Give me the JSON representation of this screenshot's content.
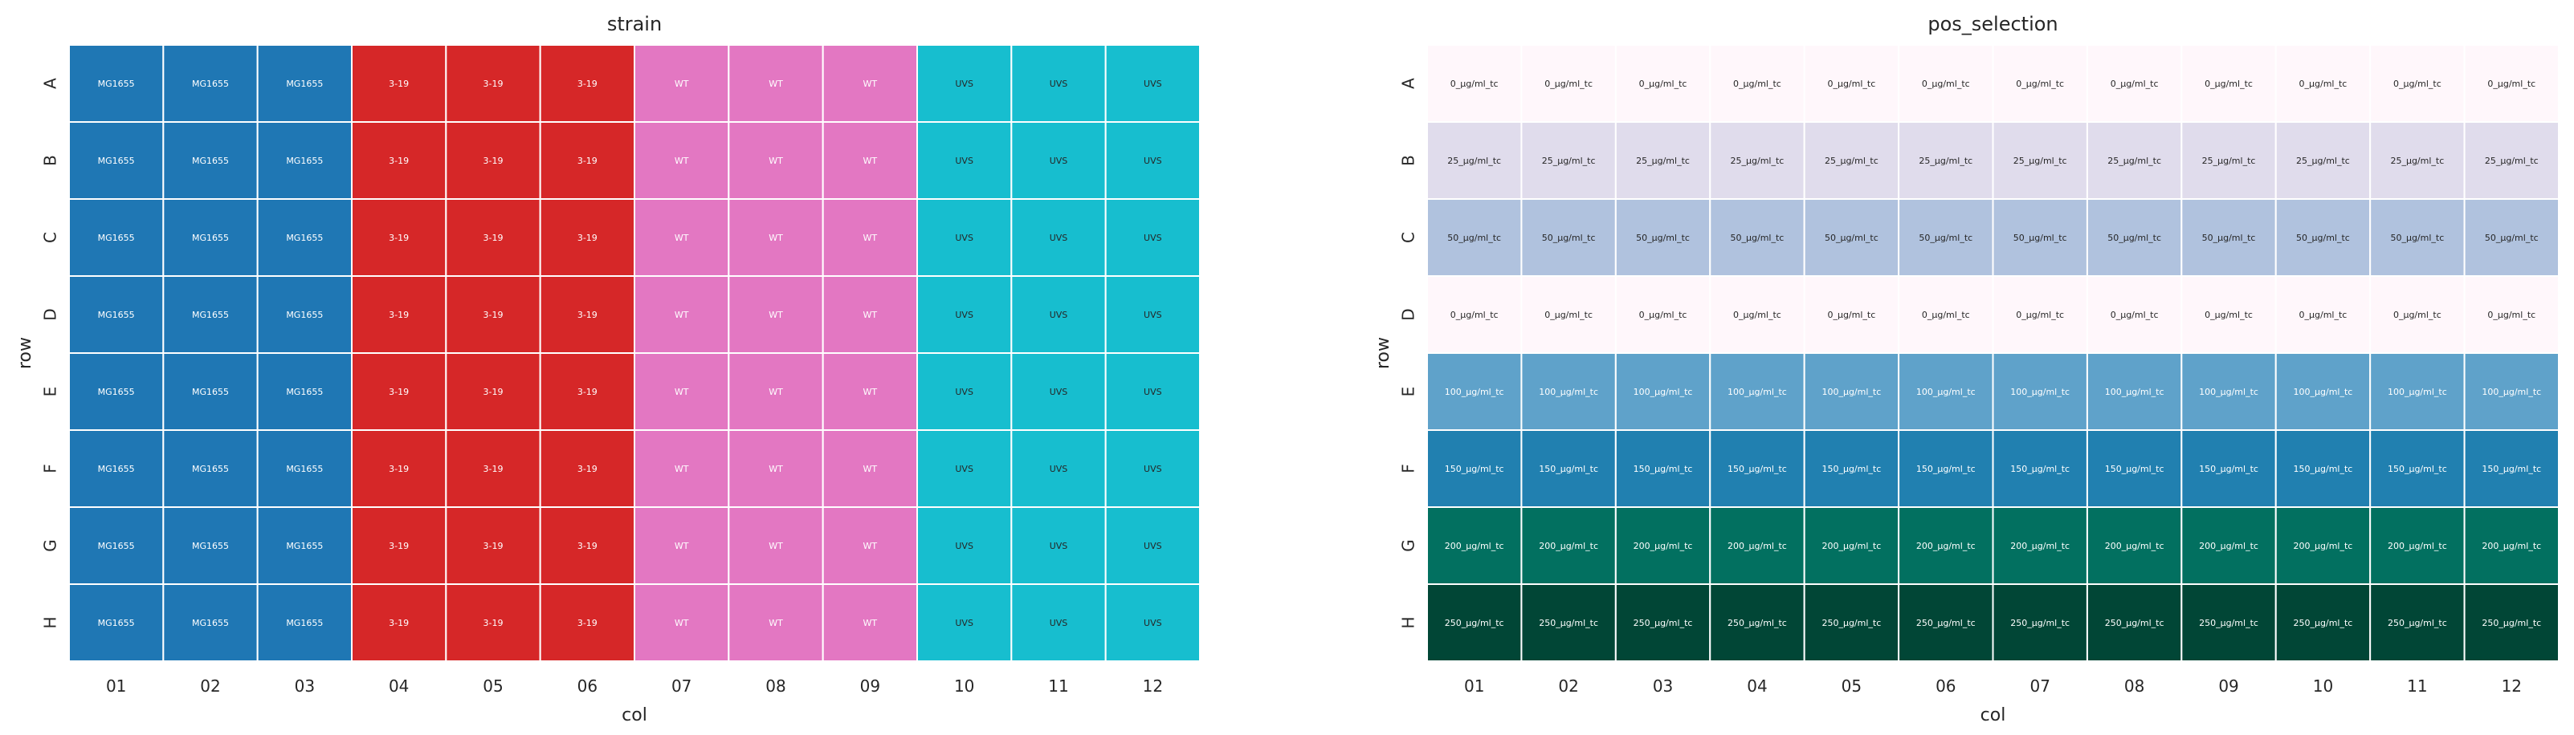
{
  "figure": {
    "palettes": {
      "strain": {
        "MG1655": "#1f77b4",
        "3-19": "#d62728",
        "WT": "#e377c2",
        "UVS": "#17becf"
      },
      "pos_selection": {
        "0_µg/ml_tc": "#fff7fb",
        "25_µg/ml_tc": "#e0dcec",
        "50_µg/ml_tc": "#b0c2de",
        "100_µg/ml_tc": "#5fa2ca",
        "150_µg/ml_tc": "#2180b0",
        "200_µg/ml_tc": "#027060",
        "250_µg/ml_tc": "#014636"
      },
      "light_text_color": "#ffffff",
      "dark_text_color": "#262626"
    }
  },
  "chart_data": [
    {
      "type": "heatmap",
      "title": "strain",
      "xlabel": "col",
      "ylabel": "row",
      "columns": [
        "01",
        "02",
        "03",
        "04",
        "05",
        "06",
        "07",
        "08",
        "09",
        "10",
        "11",
        "12"
      ],
      "rows": [
        "A",
        "B",
        "C",
        "D",
        "E",
        "F",
        "G",
        "H"
      ],
      "cells": [
        [
          "MG1655",
          "MG1655",
          "MG1655",
          "3-19",
          "3-19",
          "3-19",
          "WT",
          "WT",
          "WT",
          "UVS",
          "UVS",
          "UVS"
        ],
        [
          "MG1655",
          "MG1655",
          "MG1655",
          "3-19",
          "3-19",
          "3-19",
          "WT",
          "WT",
          "WT",
          "UVS",
          "UVS",
          "UVS"
        ],
        [
          "MG1655",
          "MG1655",
          "MG1655",
          "3-19",
          "3-19",
          "3-19",
          "WT",
          "WT",
          "WT",
          "UVS",
          "UVS",
          "UVS"
        ],
        [
          "MG1655",
          "MG1655",
          "MG1655",
          "3-19",
          "3-19",
          "3-19",
          "WT",
          "WT",
          "WT",
          "UVS",
          "UVS",
          "UVS"
        ],
        [
          "MG1655",
          "MG1655",
          "MG1655",
          "3-19",
          "3-19",
          "3-19",
          "WT",
          "WT",
          "WT",
          "UVS",
          "UVS",
          "UVS"
        ],
        [
          "MG1655",
          "MG1655",
          "MG1655",
          "3-19",
          "3-19",
          "3-19",
          "WT",
          "WT",
          "WT",
          "UVS",
          "UVS",
          "UVS"
        ],
        [
          "MG1655",
          "MG1655",
          "MG1655",
          "3-19",
          "3-19",
          "3-19",
          "WT",
          "WT",
          "WT",
          "UVS",
          "UVS",
          "UVS"
        ],
        [
          "MG1655",
          "MG1655",
          "MG1655",
          "3-19",
          "3-19",
          "3-19",
          "WT",
          "WT",
          "WT",
          "UVS",
          "UVS",
          "UVS"
        ]
      ],
      "dark_text_values": [
        "UVS"
      ]
    },
    {
      "type": "heatmap",
      "title": "pos_selection",
      "xlabel": "col",
      "ylabel": "row",
      "columns": [
        "01",
        "02",
        "03",
        "04",
        "05",
        "06",
        "07",
        "08",
        "09",
        "10",
        "11",
        "12"
      ],
      "rows": [
        "A",
        "B",
        "C",
        "D",
        "E",
        "F",
        "G",
        "H"
      ],
      "cells": [
        [
          "0_µg/ml_tc",
          "0_µg/ml_tc",
          "0_µg/ml_tc",
          "0_µg/ml_tc",
          "0_µg/ml_tc",
          "0_µg/ml_tc",
          "0_µg/ml_tc",
          "0_µg/ml_tc",
          "0_µg/ml_tc",
          "0_µg/ml_tc",
          "0_µg/ml_tc",
          "0_µg/ml_tc"
        ],
        [
          "25_µg/ml_tc",
          "25_µg/ml_tc",
          "25_µg/ml_tc",
          "25_µg/ml_tc",
          "25_µg/ml_tc",
          "25_µg/ml_tc",
          "25_µg/ml_tc",
          "25_µg/ml_tc",
          "25_µg/ml_tc",
          "25_µg/ml_tc",
          "25_µg/ml_tc",
          "25_µg/ml_tc"
        ],
        [
          "50_µg/ml_tc",
          "50_µg/ml_tc",
          "50_µg/ml_tc",
          "50_µg/ml_tc",
          "50_µg/ml_tc",
          "50_µg/ml_tc",
          "50_µg/ml_tc",
          "50_µg/ml_tc",
          "50_µg/ml_tc",
          "50_µg/ml_tc",
          "50_µg/ml_tc",
          "50_µg/ml_tc"
        ],
        [
          "0_µg/ml_tc",
          "0_µg/ml_tc",
          "0_µg/ml_tc",
          "0_µg/ml_tc",
          "0_µg/ml_tc",
          "0_µg/ml_tc",
          "0_µg/ml_tc",
          "0_µg/ml_tc",
          "0_µg/ml_tc",
          "0_µg/ml_tc",
          "0_µg/ml_tc",
          "0_µg/ml_tc"
        ],
        [
          "100_µg/ml_tc",
          "100_µg/ml_tc",
          "100_µg/ml_tc",
          "100_µg/ml_tc",
          "100_µg/ml_tc",
          "100_µg/ml_tc",
          "100_µg/ml_tc",
          "100_µg/ml_tc",
          "100_µg/ml_tc",
          "100_µg/ml_tc",
          "100_µg/ml_tc",
          "100_µg/ml_tc"
        ],
        [
          "150_µg/ml_tc",
          "150_µg/ml_tc",
          "150_µg/ml_tc",
          "150_µg/ml_tc",
          "150_µg/ml_tc",
          "150_µg/ml_tc",
          "150_µg/ml_tc",
          "150_µg/ml_tc",
          "150_µg/ml_tc",
          "150_µg/ml_tc",
          "150_µg/ml_tc",
          "150_µg/ml_tc"
        ],
        [
          "200_µg/ml_tc",
          "200_µg/ml_tc",
          "200_µg/ml_tc",
          "200_µg/ml_tc",
          "200_µg/ml_tc",
          "200_µg/ml_tc",
          "200_µg/ml_tc",
          "200_µg/ml_tc",
          "200_µg/ml_tc",
          "200_µg/ml_tc",
          "200_µg/ml_tc",
          "200_µg/ml_tc"
        ],
        [
          "250_µg/ml_tc",
          "250_µg/ml_tc",
          "250_µg/ml_tc",
          "250_µg/ml_tc",
          "250_µg/ml_tc",
          "250_µg/ml_tc",
          "250_µg/ml_tc",
          "250_µg/ml_tc",
          "250_µg/ml_tc",
          "250_µg/ml_tc",
          "250_µg/ml_tc",
          "250_µg/ml_tc"
        ]
      ],
      "dark_text_values": [
        "0_µg/ml_tc",
        "25_µg/ml_tc",
        "50_µg/ml_tc"
      ]
    }
  ]
}
